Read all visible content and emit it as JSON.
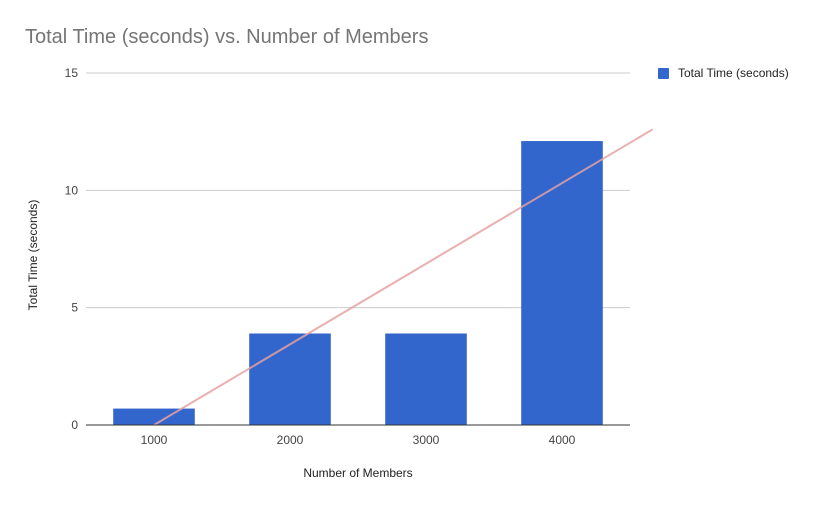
{
  "chart_data": {
    "type": "bar",
    "title": "Total Time (seconds) vs. Number of Members",
    "xlabel": "Number of Members",
    "ylabel": "Total Time (seconds)",
    "categories": [
      "1000",
      "2000",
      "3000",
      "4000"
    ],
    "series": [
      {
        "name": "Total Time (seconds)",
        "values": [
          0.7,
          3.9,
          3.9,
          12.1
        ]
      }
    ],
    "ylim": [
      0,
      15
    ],
    "yticks": [
      0,
      5,
      10,
      15
    ],
    "grid": true,
    "legend": "right",
    "trendline": {
      "type": "linear",
      "start": {
        "x": 1000,
        "y": 0
      },
      "end": {
        "x": 4667,
        "y": 12.6
      }
    },
    "colors": {
      "bar": "#3366cc",
      "trendline": "#e6a1a1",
      "grid": "#cccccc",
      "baseline": "#333333"
    }
  }
}
